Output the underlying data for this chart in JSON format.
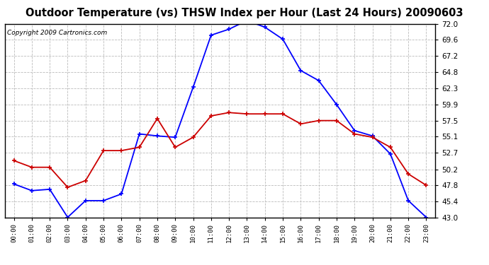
{
  "title": "Outdoor Temperature (vs) THSW Index per Hour (Last 24 Hours) 20090603",
  "copyright": "Copyright 2009 Cartronics.com",
  "hours": [
    0,
    1,
    2,
    3,
    4,
    5,
    6,
    7,
    8,
    9,
    10,
    11,
    12,
    13,
    14,
    15,
    16,
    17,
    18,
    19,
    20,
    21,
    22,
    23
  ],
  "hour_labels": [
    "00:00",
    "01:00",
    "02:00",
    "03:00",
    "04:00",
    "05:00",
    "06:00",
    "07:00",
    "08:00",
    "09:00",
    "10:00",
    "11:00",
    "12:00",
    "13:00",
    "14:00",
    "15:00",
    "16:00",
    "17:00",
    "18:00",
    "19:00",
    "20:00",
    "21:00",
    "22:00",
    "23:00"
  ],
  "blue_line": [
    48.0,
    47.0,
    47.2,
    43.0,
    45.5,
    45.5,
    46.5,
    55.5,
    55.2,
    55.0,
    62.5,
    70.3,
    71.2,
    72.5,
    71.5,
    69.7,
    65.0,
    63.5,
    59.9,
    56.0,
    55.2,
    52.5,
    45.5,
    43.0
  ],
  "red_line": [
    51.5,
    50.5,
    50.5,
    47.5,
    48.5,
    53.0,
    53.0,
    53.5,
    57.8,
    53.5,
    55.0,
    58.2,
    58.7,
    58.5,
    58.5,
    58.5,
    57.0,
    57.5,
    57.5,
    55.5,
    55.0,
    53.5,
    49.5,
    47.8
  ],
  "blue_color": "#0000ff",
  "red_color": "#cc0000",
  "bg_color": "#ffffff",
  "plot_bg_color": "#ffffff",
  "grid_color": "#bbbbbb",
  "ylim": [
    43.0,
    72.0
  ],
  "yticks": [
    43.0,
    45.4,
    47.8,
    50.2,
    52.7,
    55.1,
    57.5,
    59.9,
    62.3,
    64.8,
    67.2,
    69.6,
    72.0
  ],
  "title_fontsize": 10.5,
  "copyright_fontsize": 6.5,
  "marker": "+",
  "markersize": 5,
  "linewidth": 1.3
}
